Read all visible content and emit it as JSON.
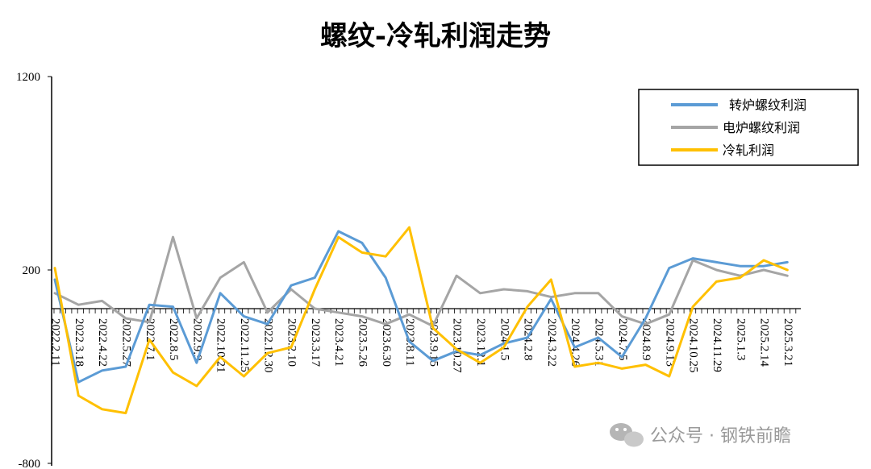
{
  "chart_data": {
    "type": "line",
    "title": "螺纹-冷轧利润走势",
    "ylim": [
      -800,
      1200
    ],
    "y_ticks": [
      "1200",
      "200",
      "-800"
    ],
    "x_tick_labels": [
      "2022.2.11",
      "2022.3.18",
      "2022.4.22",
      "2022.5.27",
      "2022.7.1",
      "2022.8.5",
      "2022.9.9",
      "2022.10.21",
      "2022.11.25",
      "2022.12.30",
      "2023.2.10",
      "2023.3.17",
      "2023.4.21",
      "2023.5.26",
      "2023.6.30",
      "2023.8.11",
      "2023.9.15",
      "2023.10.27",
      "2023.12.1",
      "2024.1.5",
      "2024.2.8",
      "2024.3.22",
      "2024.4.26",
      "2024.5.31",
      "2024.7.5",
      "2024.8.9",
      "2024.9.13",
      "2024.10.25",
      "2024.11.29",
      "2025.1.3",
      "2025.2.14",
      "2025.3.21"
    ],
    "grid": false,
    "legend_position": "top-right",
    "series": [
      {
        "name": "转炉螺纹利润",
        "color": "#5B9BD5",
        "values": [
          150,
          -380,
          -320,
          -300,
          20,
          10,
          -280,
          80,
          -40,
          -80,
          120,
          160,
          400,
          340,
          160,
          -170,
          -270,
          -220,
          -240,
          -180,
          -150,
          50,
          -200,
          -150,
          -250,
          -50,
          210,
          260,
          240,
          220,
          220,
          240
        ]
      },
      {
        "name": "电炉螺纹利润",
        "color": "#A5A5A5",
        "values": [
          80,
          20,
          40,
          -50,
          -70,
          370,
          -50,
          160,
          240,
          -20,
          100,
          0,
          -20,
          -40,
          -80,
          -30,
          -90,
          170,
          80,
          100,
          90,
          60,
          80,
          80,
          -40,
          -80,
          -30,
          250,
          200,
          170,
          200,
          170
        ]
      },
      {
        "name": "冷轧利润",
        "color": "#FFC000",
        "values": [
          210,
          -450,
          -520,
          -540,
          -160,
          -330,
          -400,
          -250,
          -350,
          -230,
          -200,
          100,
          370,
          290,
          270,
          420,
          -100,
          -210,
          -280,
          -200,
          10,
          150,
          -300,
          -280,
          -310,
          -290,
          -350,
          10,
          140,
          160,
          250,
          200
        ]
      }
    ]
  },
  "watermark": {
    "text": "公众号 · 钢铁前瞻",
    "icon": "wechat-icon"
  }
}
